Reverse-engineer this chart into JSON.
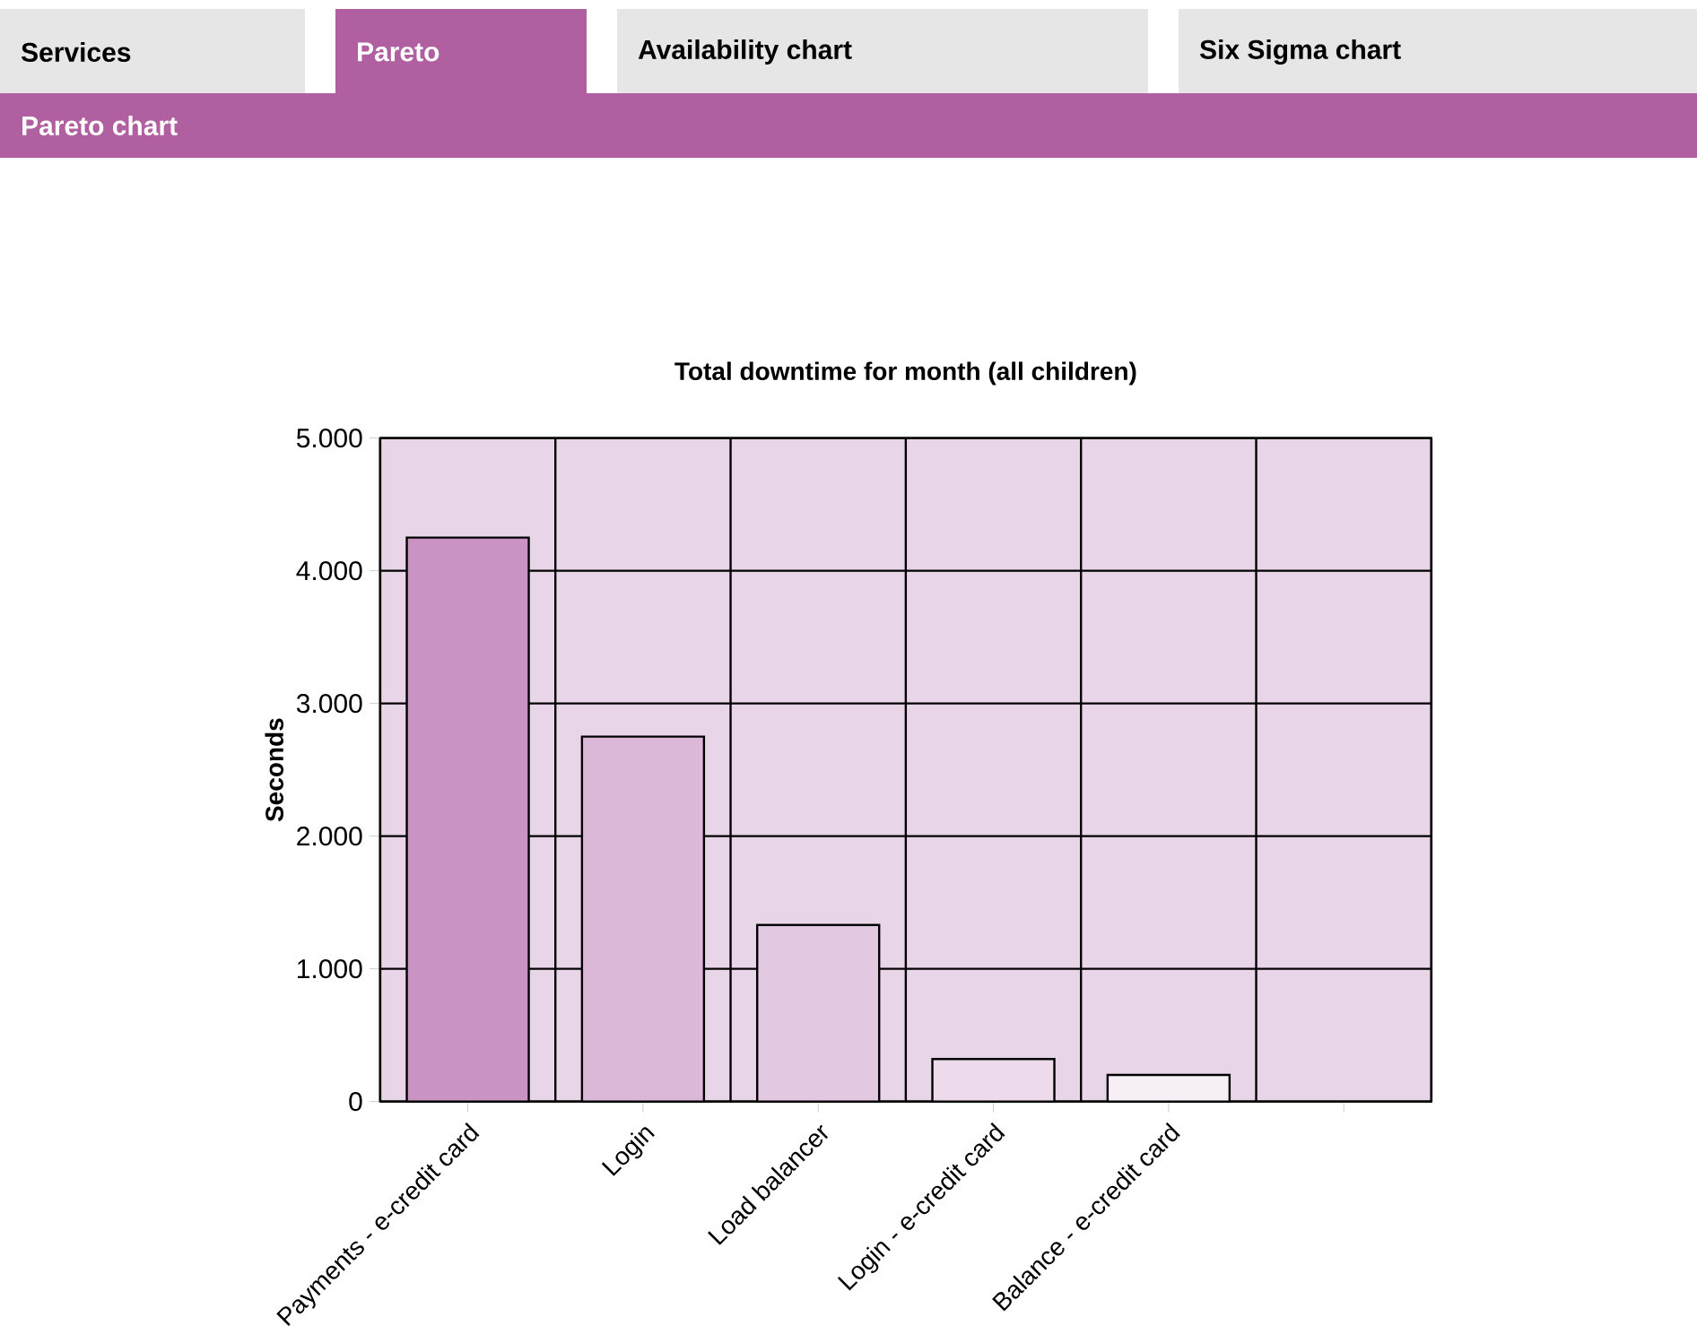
{
  "chart_data": {
    "type": "bar",
    "title": "Total downtime for month (all children)",
    "ylabel": "Seconds",
    "categories": [
      "Payments - e-credit card",
      "Login",
      "Load balancer",
      "Login - e-credit card",
      "Balance - e-credit card",
      null
    ],
    "values": [
      4250,
      2750,
      1330,
      320,
      200,
      null
    ],
    "colors": [
      "#c994c3",
      "#dbb7d8",
      "#e3c8e1",
      "#eddaeb",
      "#f7eff6",
      "#f7eff6"
    ],
    "ylim": [
      0,
      5000
    ],
    "yticks": [
      0,
      {
        "value": 1000,
        "label": "1.000"
      },
      {
        "value": 2000,
        "label": "2.000"
      },
      {
        "value": 3000,
        "label": "3.000"
      },
      {
        "value": 4000,
        "label": "4.000"
      },
      {
        "value": 5000,
        "label": "5.000"
      }
    ],
    "grid": true,
    "annotations": [
      "Services",
      "Pareto",
      "Availability chart",
      "Six Sigma chart",
      "Pareto chart"
    ]
  }
}
